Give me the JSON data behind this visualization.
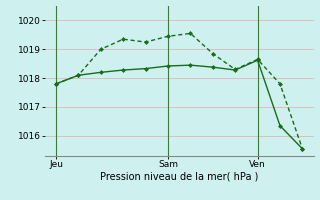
{
  "line1_x": [
    0,
    1,
    2,
    3,
    4,
    5,
    6,
    7,
    8,
    9,
    10,
    11
  ],
  "line1_y": [
    1017.8,
    1018.1,
    1019.0,
    1019.35,
    1019.25,
    1019.45,
    1019.55,
    1018.85,
    1018.3,
    1018.65,
    1017.8,
    1015.55
  ],
  "line2_x": [
    0,
    1,
    2,
    3,
    4,
    5,
    6,
    7,
    8,
    9,
    10,
    11
  ],
  "line2_y": [
    1017.8,
    1018.1,
    1018.2,
    1018.28,
    1018.33,
    1018.42,
    1018.45,
    1018.38,
    1018.28,
    1018.62,
    1016.35,
    1015.55
  ],
  "xtick_positions": [
    0,
    5,
    9
  ],
  "xtick_labels": [
    "Jeu",
    "Sam",
    "Ven"
  ],
  "vline_positions": [
    0,
    5,
    9
  ],
  "ytick_positions": [
    1016,
    1017,
    1018,
    1019,
    1020
  ],
  "ylim": [
    1015.3,
    1020.5
  ],
  "xlim": [
    -0.5,
    11.5
  ],
  "xlabel": "Pression niveau de la mer( hPa )",
  "line_color": "#1a6b1a",
  "bg_color": "#cef0ee",
  "grid_color": "#ddb8b8",
  "markersize": 2.5,
  "linewidth": 1.0
}
